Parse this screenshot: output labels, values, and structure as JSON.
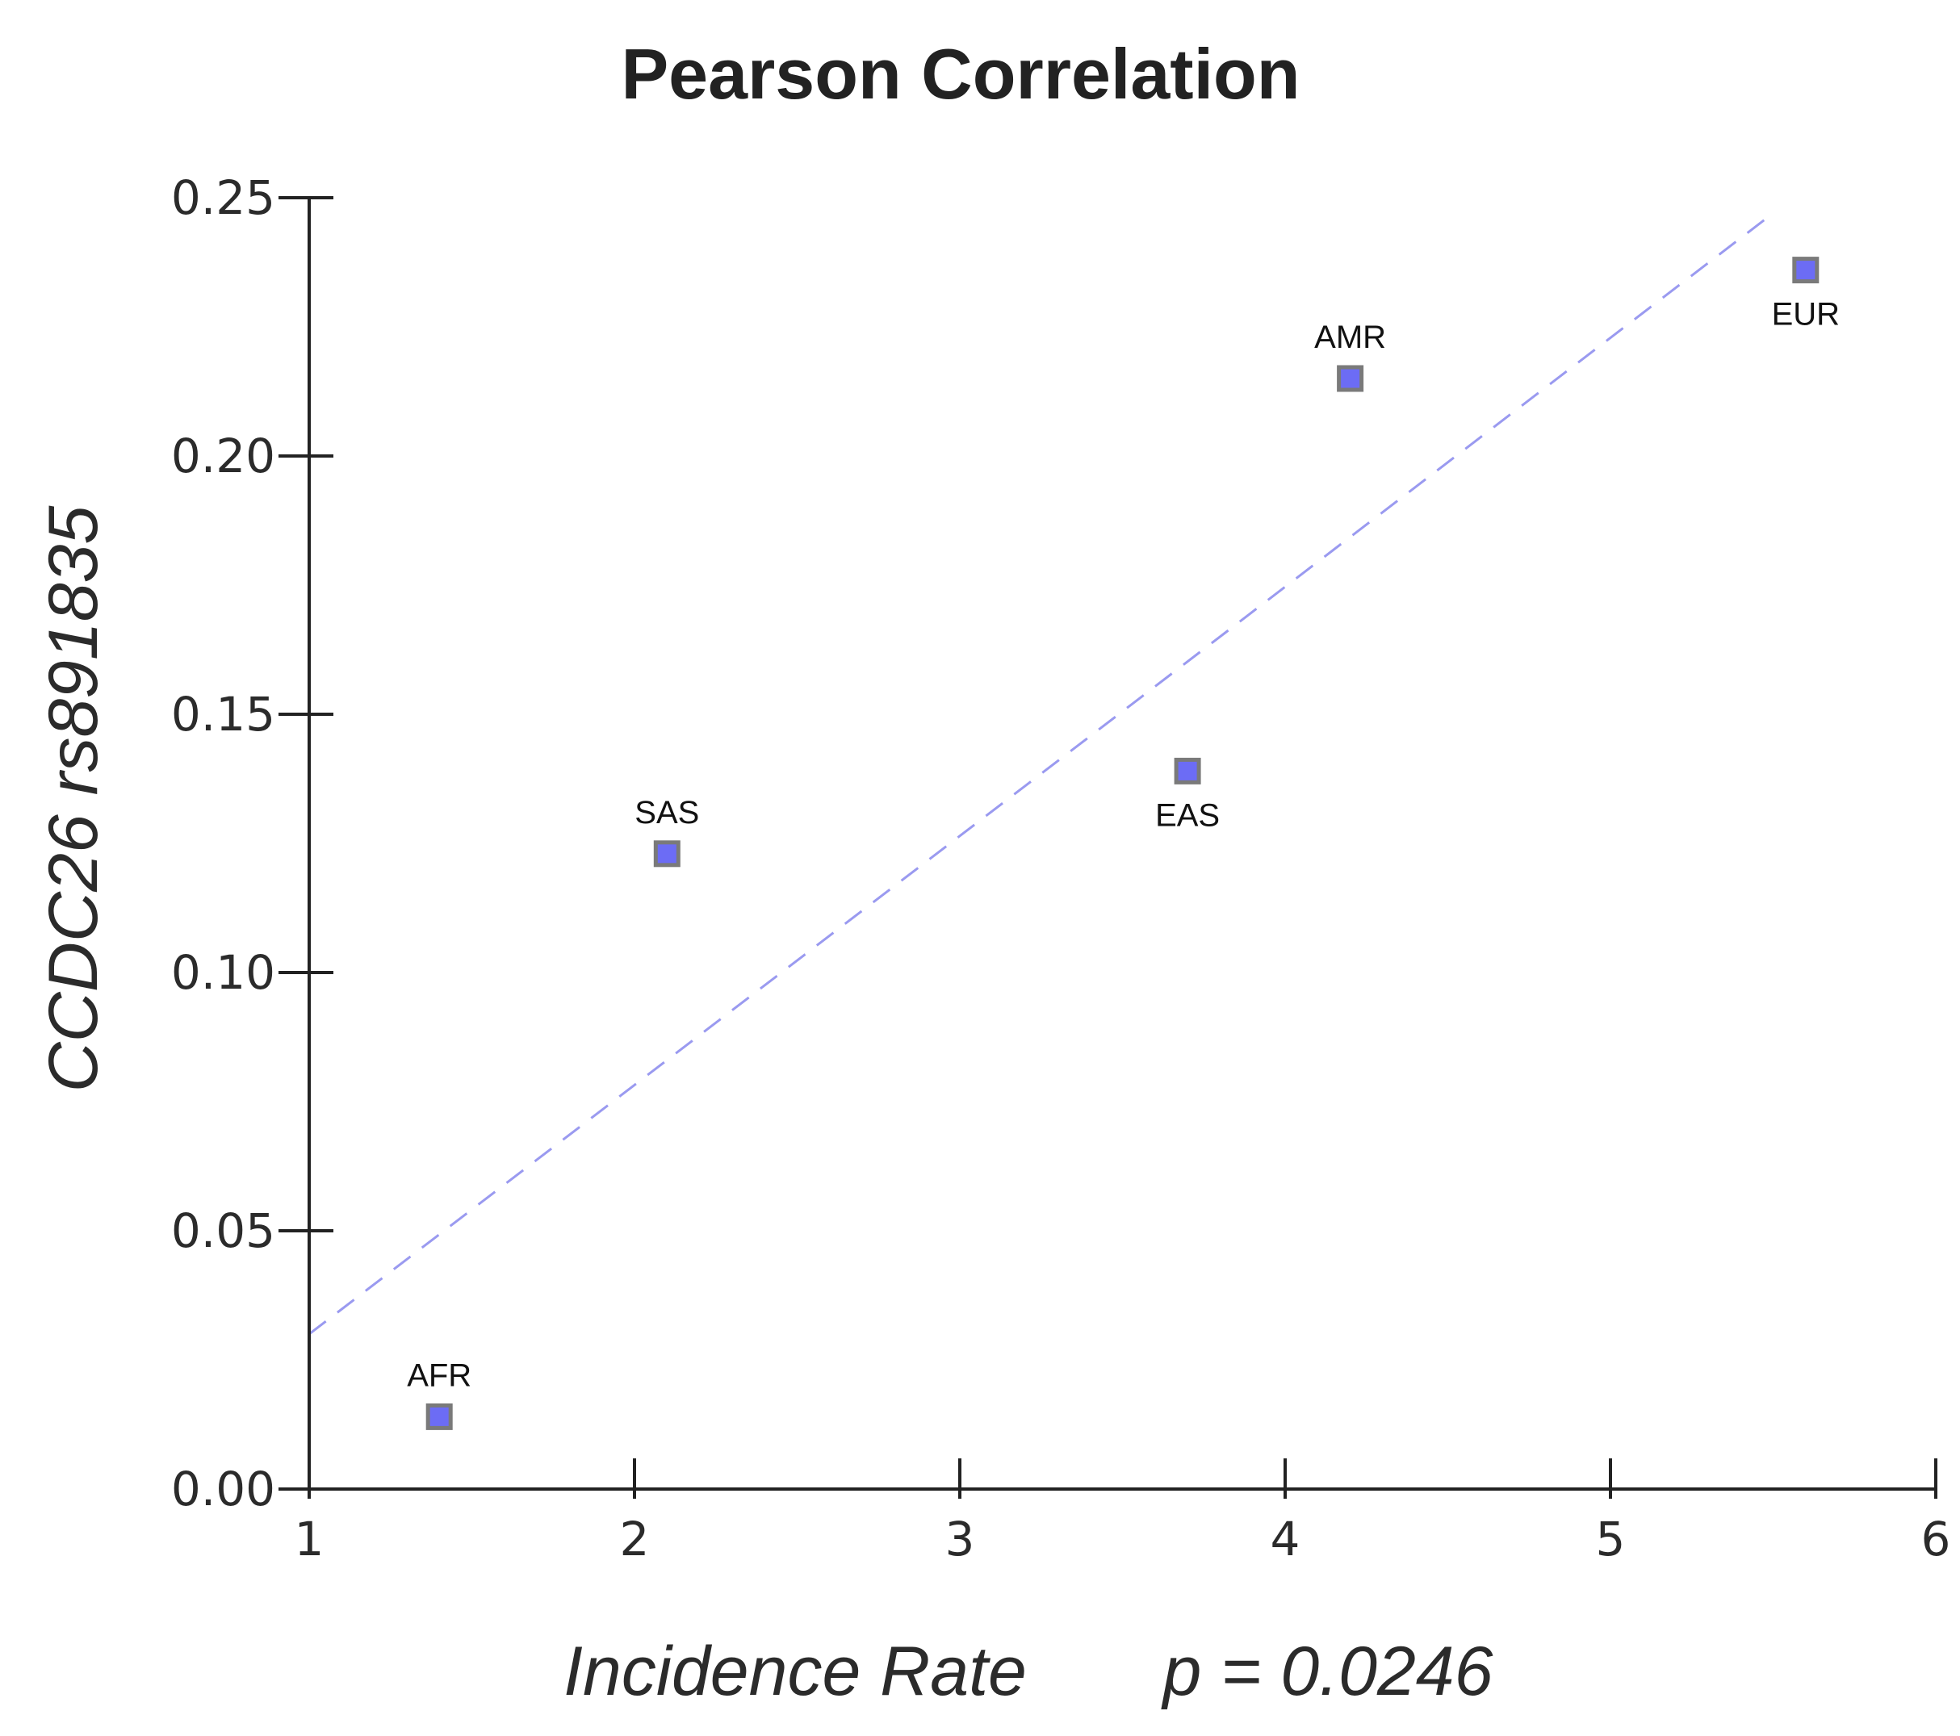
{
  "chart_data": {
    "type": "scatter",
    "title": "Pearson Correlation",
    "xlabel": "Incidence Rate",
    "ylabel": "CCDC26 rs891835",
    "annotation": "p = 0.0246",
    "xlim": [
      1,
      6
    ],
    "ylim": [
      0,
      0.25
    ],
    "xticks": [
      1,
      2,
      3,
      4,
      5,
      6
    ],
    "xtick_labels": [
      "1",
      "2",
      "3",
      "4",
      "5",
      "6"
    ],
    "yticks": [
      0,
      0.05,
      0.1,
      0.15,
      0.2,
      0.25
    ],
    "ytick_labels": [
      "0.00",
      "0.05",
      "0.10",
      "0.15",
      "0.20",
      "0.25"
    ],
    "grid": false,
    "points": [
      {
        "label": "AFR",
        "x": 1.4,
        "y": 0.014,
        "label_pos": "above"
      },
      {
        "label": "SAS",
        "x": 2.1,
        "y": 0.123,
        "label_pos": "above"
      },
      {
        "label": "EAS",
        "x": 3.7,
        "y": 0.139,
        "label_pos": "below"
      },
      {
        "label": "AMR",
        "x": 4.2,
        "y": 0.215,
        "label_pos": "above"
      },
      {
        "label": "EUR",
        "x": 5.6,
        "y": 0.236,
        "label_pos": "below"
      }
    ],
    "trendline": {
      "x": [
        1.0,
        5.5
      ],
      "y": [
        0.03,
        0.247
      ],
      "style": "dashed"
    },
    "colors": {
      "marker_fill": "#6c6cf5",
      "marker_stroke": "#7a7a7a",
      "trendline": "#9a9af0",
      "axis": "#222222"
    }
  }
}
